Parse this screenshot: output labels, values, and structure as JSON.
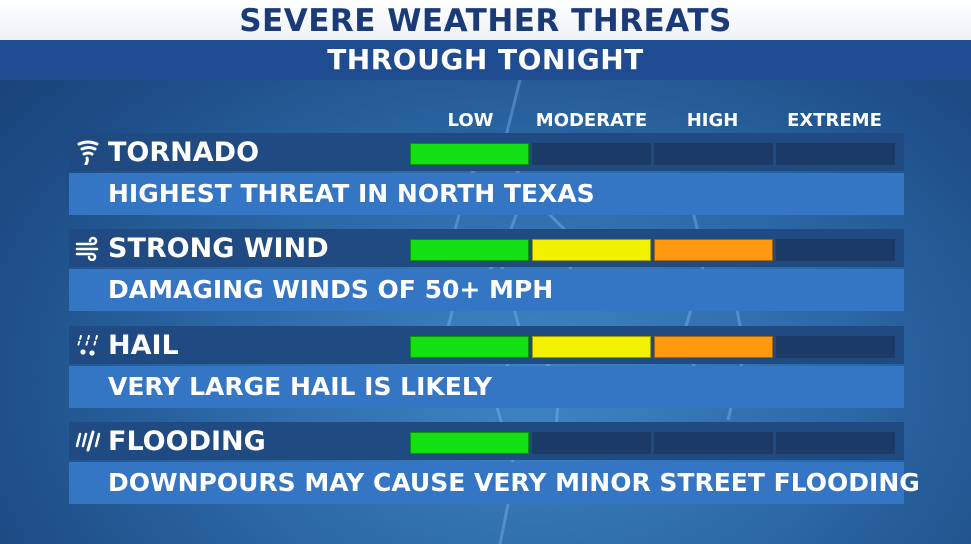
{
  "header": {
    "title": "SEVERE WEATHER THREATS",
    "subtitle": "THROUGH TONIGHT"
  },
  "levels": [
    "LOW",
    "MODERATE",
    "HIGH",
    "EXTREME"
  ],
  "colors": {
    "low": "#12e012",
    "moderate": "#f2f200",
    "high": "#ff9a10",
    "extreme": "#e02020",
    "empty": "#1b3a66",
    "header_band": "#1f4c90",
    "row_head": "#1f4a82",
    "row_desc": "#3476c4"
  },
  "threats": [
    {
      "name": "TORNADO",
      "icon": "tornado-icon",
      "description": "HIGHEST THREAT IN NORTH TEXAS",
      "level_count": 1
    },
    {
      "name": "STRONG WIND",
      "icon": "wind-icon",
      "description": "DAMAGING WINDS OF 50+ MPH",
      "level_count": 3
    },
    {
      "name": "HAIL",
      "icon": "hail-icon",
      "description": "VERY LARGE HAIL IS LIKELY",
      "level_count": 3
    },
    {
      "name": "FLOODING",
      "icon": "rain-icon",
      "description": "DOWNPOURS MAY CAUSE VERY MINOR STREET FLOODING",
      "level_count": 1
    }
  ]
}
